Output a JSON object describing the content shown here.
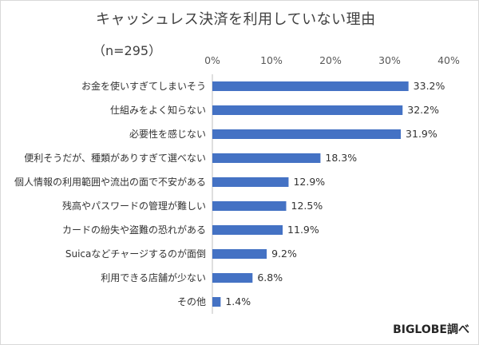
{
  "chart_data": {
    "type": "bar",
    "orientation": "horizontal",
    "title": "キャッシュレス決済を利用していない理由",
    "subtitle": "（n=295）",
    "source": "BIGLOBE調べ",
    "categories": [
      "お金を使いすぎてしまいそう",
      "仕組みをよく知らない",
      "必要性を感じない",
      "便利そうだが、種類がありすぎて選べない",
      "個人情報の利用範囲や流出の面で不安がある",
      "残高やパスワードの管理が難しい",
      "カードの紛失や盗難の恐れがある",
      "Suicaなどチャージするのが面倒",
      "利用できる店舗が少ない",
      "その他"
    ],
    "values": [
      33.2,
      32.2,
      31.9,
      18.3,
      12.9,
      12.5,
      11.9,
      9.2,
      6.8,
      1.4
    ],
    "value_labels": [
      "33.2%",
      "32.2%",
      "31.9%",
      "18.3%",
      "12.9%",
      "12.5%",
      "11.9%",
      "9.2%",
      "6.8%",
      "1.4%"
    ],
    "xlim": [
      0,
      40
    ],
    "xticks": [
      0,
      10,
      20,
      30,
      40
    ],
    "xtick_labels": [
      "0%",
      "10%",
      "20%",
      "30%",
      "40%"
    ],
    "axis_position": "top",
    "grid": false,
    "legend": "none",
    "bar_color": "#4472c4"
  }
}
